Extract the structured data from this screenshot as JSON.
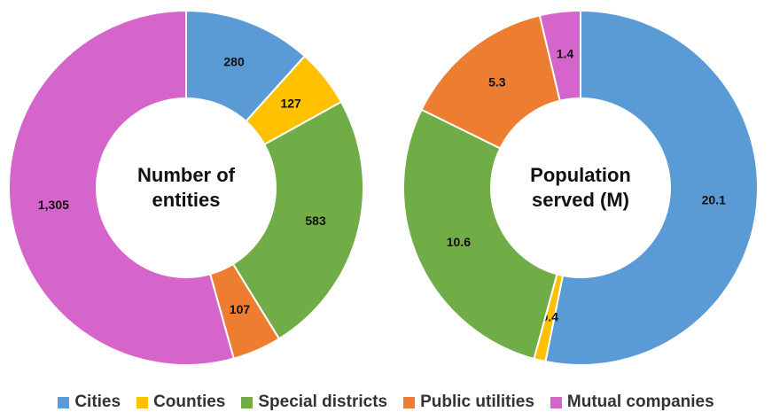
{
  "chart_data": [
    {
      "type": "pie",
      "title": "Number of entities",
      "categories": [
        "Cities",
        "Counties",
        "Special districts",
        "Public utilities",
        "Mutual companies"
      ],
      "colors": [
        "#5b9bd5",
        "#ffc000",
        "#70ad47",
        "#ed7d31",
        "#d665cb"
      ],
      "values": [
        280,
        127,
        583,
        107,
        1305
      ],
      "value_labels": [
        "280",
        "127",
        "583",
        "107",
        "1,305"
      ]
    },
    {
      "type": "pie",
      "title": "Population served (M)",
      "values": [
        20.1,
        0.4,
        10.6,
        5.3,
        1.4
      ]
    }
  ]
}
